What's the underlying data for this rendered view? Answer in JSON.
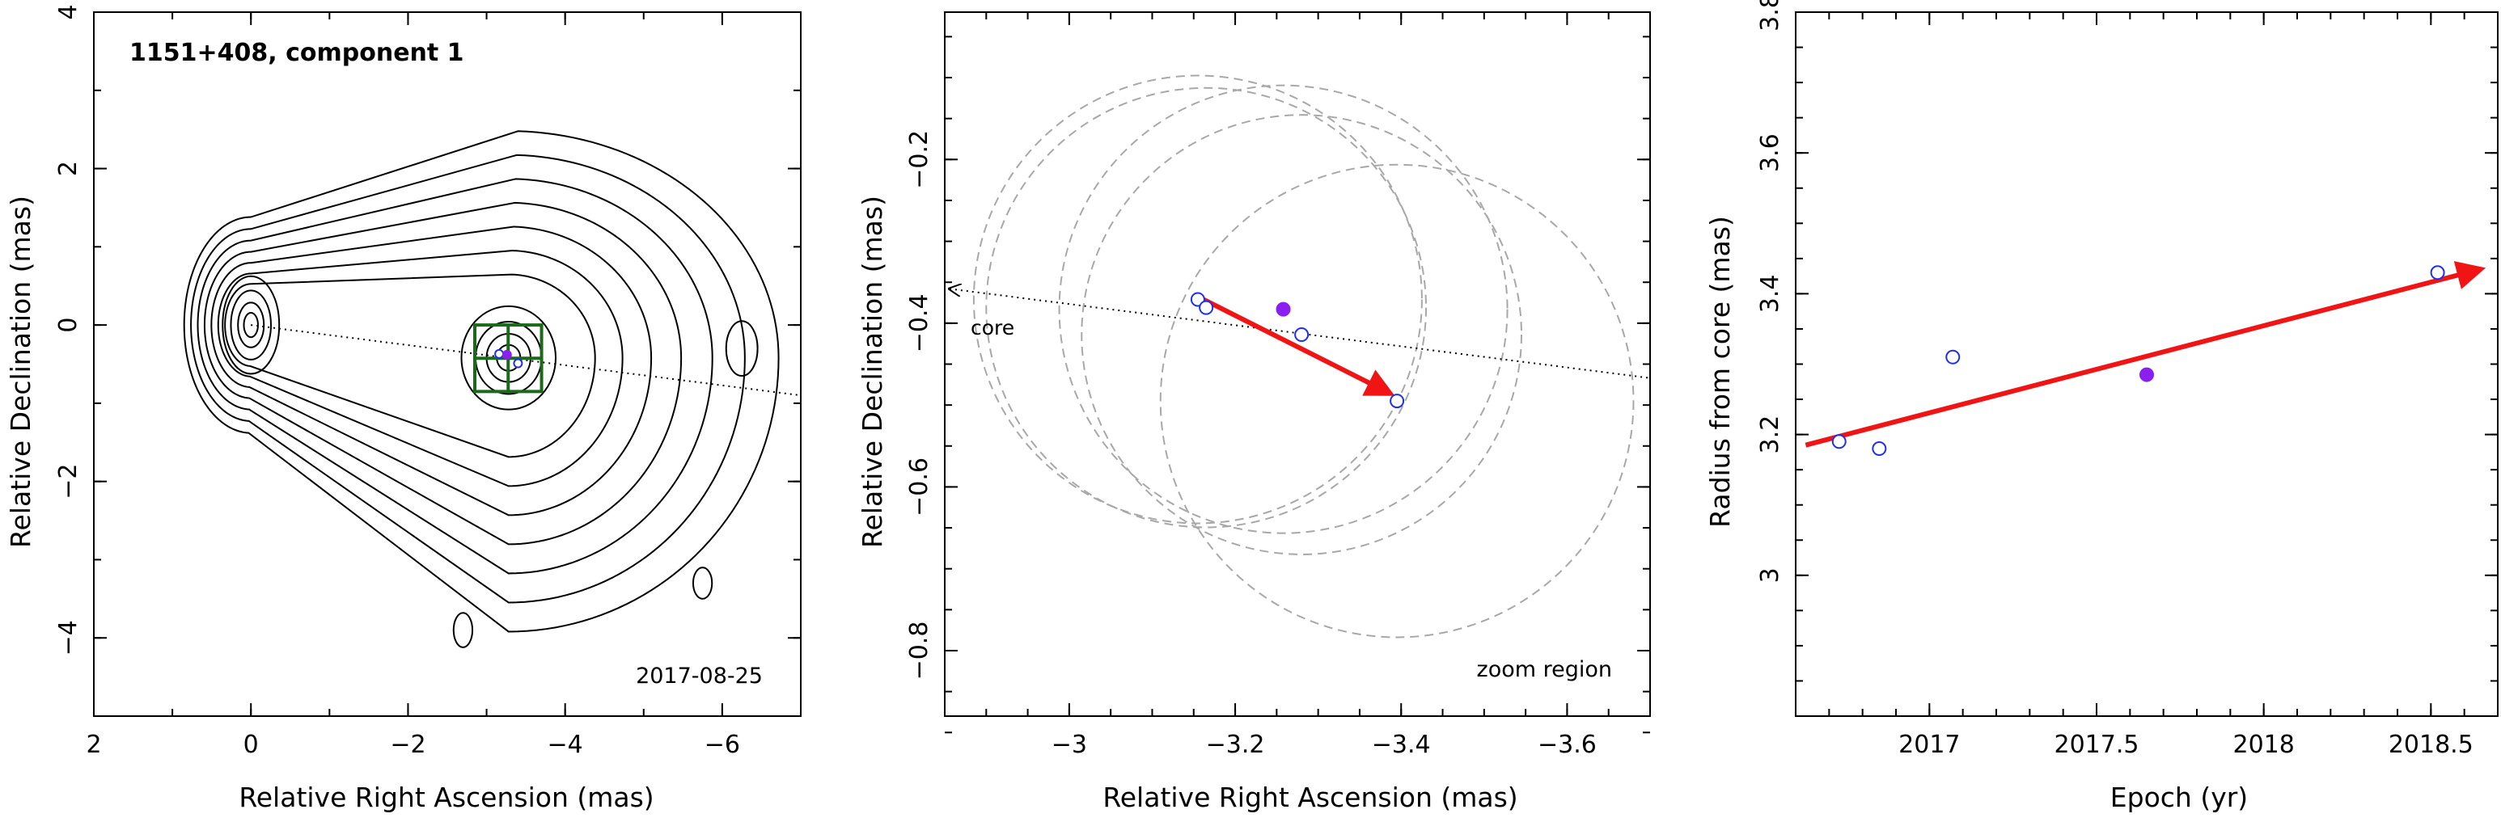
{
  "colors": {
    "open_point": "#1f2ff0",
    "filled_point": "#8a1ff0",
    "arrow": "#f01414",
    "box": "#1a6a1a",
    "dashed": "#a8a8a8"
  },
  "chart_data": [
    {
      "type": "scatter",
      "panel": "map",
      "annotation": "1151+408, component 1",
      "date_label": "2017-08-25",
      "xlabel": "Relative Right Ascension (mas)",
      "ylabel": "Relative Declination (mas)",
      "xlim": [
        2,
        -7
      ],
      "ylim": [
        -5,
        4
      ],
      "xticks": [
        2,
        0,
        -2,
        -4,
        -6
      ],
      "xtick_labels": [
        "2",
        "0",
        "−2",
        "−4",
        "−6"
      ],
      "yticks": [
        4,
        2,
        0,
        -2,
        -4
      ],
      "ytick_labels": [
        "4",
        "2",
        "0",
        "−2",
        "−4"
      ],
      "contour_levels": 10,
      "component_position": {
        "x": -3.28,
        "y": -0.42
      },
      "points": [
        {
          "x": -3.16,
          "y": -0.37,
          "kind": "open"
        },
        {
          "x": -3.26,
          "y": -0.38,
          "kind": "filled"
        },
        {
          "x": -3.4,
          "y": -0.49,
          "kind": "open"
        }
      ],
      "zoom_box": {
        "x": [
          -2.85,
          -3.7
        ],
        "y": [
          -0.85,
          0
        ]
      },
      "core_direction_line": {
        "from": {
          "x": 0,
          "y": 0
        },
        "to": {
          "x": -7,
          "y": -0.9
        }
      }
    },
    {
      "type": "scatter",
      "panel": "zoom",
      "xlabel": "Relative Right Ascension (mas)",
      "ylabel": "Relative Declination (mas)",
      "xlim": [
        -2.85,
        -3.7
      ],
      "ylim": [
        -0.88,
        -0.02
      ],
      "xticks": [
        -3,
        -3.2,
        -3.4,
        -3.6
      ],
      "xtick_labels": [
        "−3",
        "−3.2",
        "−3.4",
        "−3.6"
      ],
      "yticks": [
        -0.2,
        -0.4,
        -0.6,
        -0.8
      ],
      "ytick_labels": [
        "−0.2",
        "−0.4",
        "−0.6",
        "−0.8"
      ],
      "core_label": "core",
      "zoom_label": "zoom region",
      "points": [
        {
          "x": -3.155,
          "y": -0.371,
          "kind": "open"
        },
        {
          "x": -3.165,
          "y": -0.381,
          "kind": "open"
        },
        {
          "x": -3.258,
          "y": -0.383,
          "kind": "filled"
        },
        {
          "x": -3.28,
          "y": -0.414,
          "kind": "open"
        },
        {
          "x": -3.395,
          "y": -0.495,
          "kind": "open"
        }
      ],
      "error_circles": [
        {
          "x": -3.155,
          "y": -0.371,
          "r": 0.27
        },
        {
          "x": -3.165,
          "y": -0.381,
          "r": 0.265
        },
        {
          "x": -3.258,
          "y": -0.383,
          "r": 0.27
        },
        {
          "x": -3.28,
          "y": -0.414,
          "r": 0.265
        },
        {
          "x": -3.395,
          "y": -0.495,
          "r": 0.285
        }
      ],
      "motion_arrow": {
        "from": {
          "x": -3.15,
          "y": -0.365
        },
        "to": {
          "x": -3.395,
          "y": -0.49
        }
      },
      "core_direction_line": {
        "from": {
          "x": -2.85,
          "y": -0.358
        },
        "to": {
          "x": -3.7,
          "y": -0.467
        }
      }
    },
    {
      "type": "scatter",
      "panel": "radius",
      "xlabel": "Epoch (yr)",
      "ylabel": "Radius from core (mas)",
      "xlim": [
        2016.6,
        2018.7
      ],
      "ylim": [
        2.8,
        3.8
      ],
      "xticks": [
        2017,
        2017.5,
        2018,
        2018.5
      ],
      "xtick_labels": [
        "2017",
        "2017.5",
        "2018",
        "2018.5"
      ],
      "yticks": [
        3,
        3.2,
        3.4,
        3.6,
        3.8
      ],
      "ytick_labels": [
        "3",
        "3.2",
        "3.4",
        "3.6",
        "3.8"
      ],
      "points": [
        {
          "x": 2016.73,
          "y": 3.19,
          "kind": "open"
        },
        {
          "x": 2016.85,
          "y": 3.18,
          "kind": "open"
        },
        {
          "x": 2017.07,
          "y": 3.31,
          "kind": "open"
        },
        {
          "x": 2017.65,
          "y": 3.285,
          "kind": "filled"
        },
        {
          "x": 2018.52,
          "y": 3.43,
          "kind": "open"
        }
      ],
      "fit_arrow": {
        "from": {
          "x": 2016.63,
          "y": 3.185
        },
        "to": {
          "x": 2018.65,
          "y": 3.435
        }
      }
    }
  ]
}
